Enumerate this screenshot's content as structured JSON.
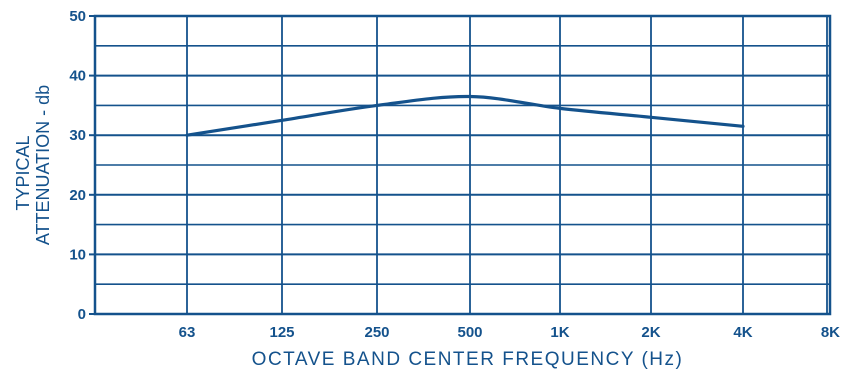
{
  "chart_data": {
    "type": "line",
    "xlabel": "OCTAVE BAND CENTER FREQUENCY (Hz)",
    "ylabel_lines": [
      "TYPICAL",
      "ATTENUATION - db"
    ],
    "categories": [
      "63",
      "125",
      "250",
      "500",
      "1K",
      "2K",
      "4K",
      "8K"
    ],
    "yticks": [
      0,
      10,
      20,
      30,
      40,
      50
    ],
    "ylim": [
      0,
      50
    ],
    "grid": true,
    "series": [
      {
        "values": [
          30,
          32.5,
          35,
          36.5,
          34.5,
          33,
          31.5,
          null
        ]
      }
    ]
  },
  "colors": {
    "ink": "#14528c",
    "background": "#ffffff"
  }
}
